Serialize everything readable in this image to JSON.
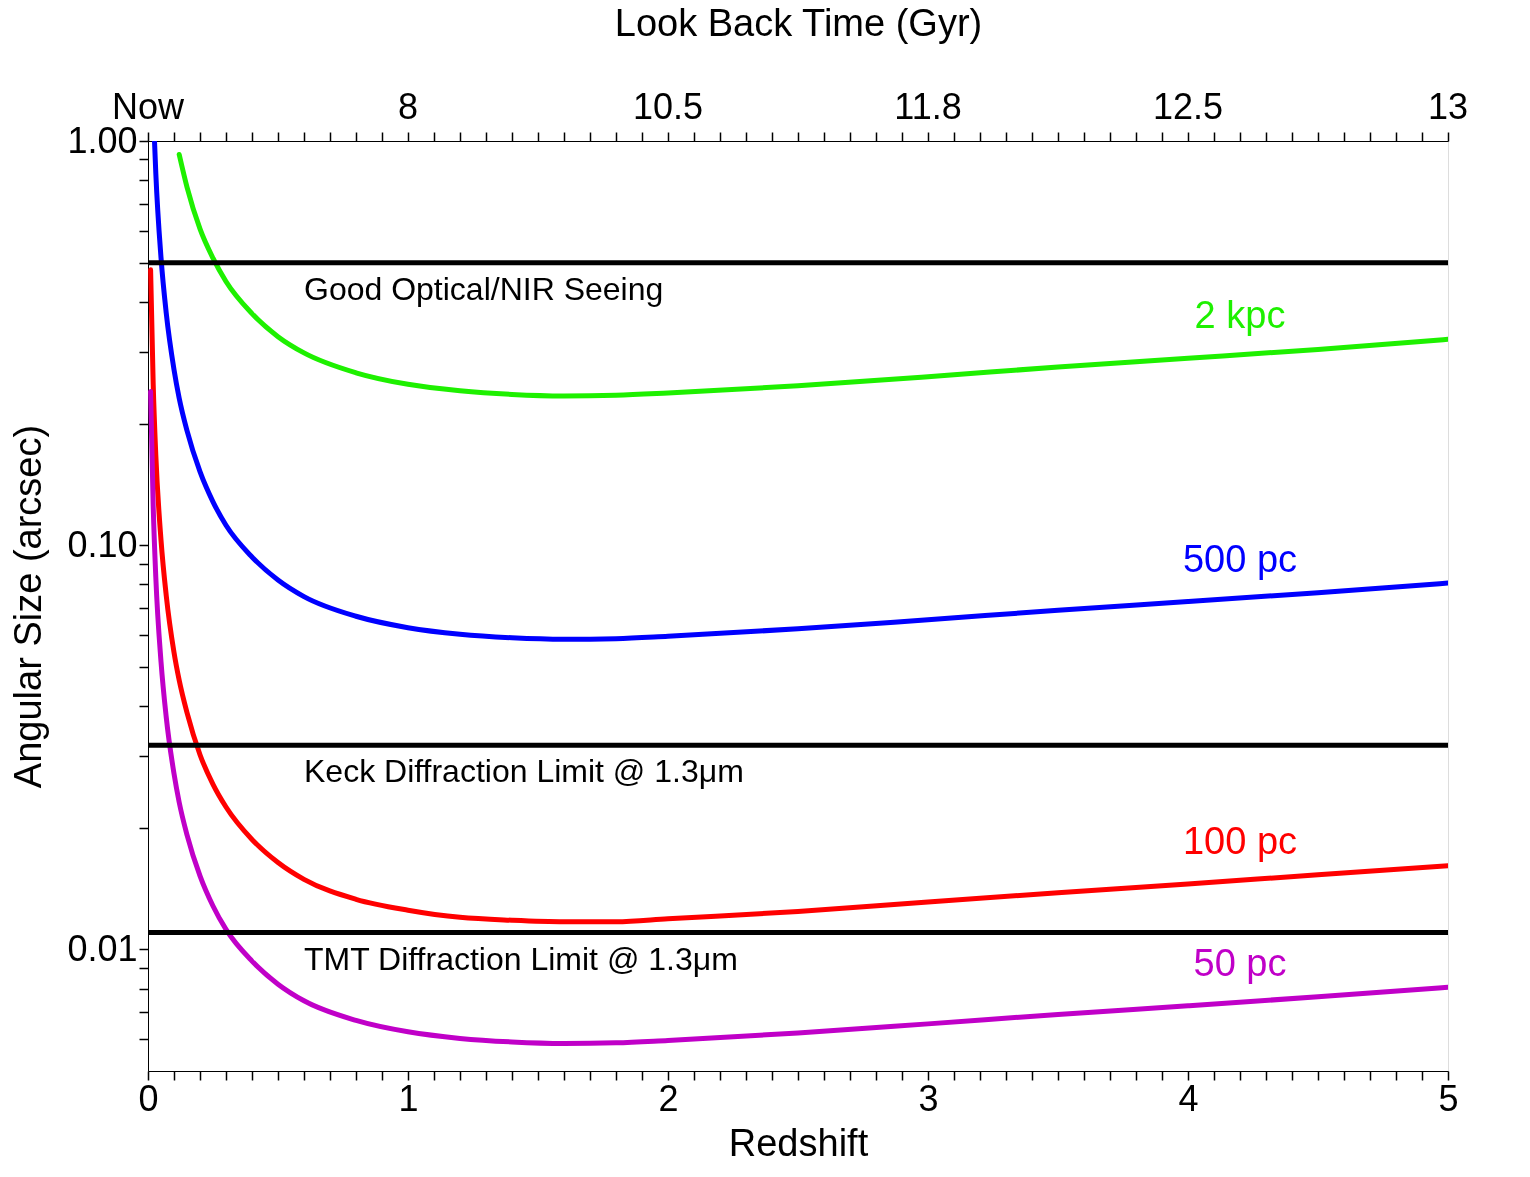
{
  "chart_data": {
    "type": "line",
    "xlabel": "Redshift",
    "ylabel": "Angular Size (arcsec)",
    "x2label": "Look Back Time (Gyr)",
    "log": "y",
    "xlim": [
      0,
      5
    ],
    "ylim": [
      0.005,
      1
    ],
    "xticks": [
      0,
      {
        "value": 0.1,
        "label": null
      },
      {
        "value": 0.2,
        "label": null
      },
      {
        "value": 0.3,
        "label": null
      },
      {
        "value": 0.4,
        "label": null
      },
      {
        "value": 0.5,
        "label": null
      },
      {
        "value": 0.6,
        "label": null
      },
      {
        "value": 0.7,
        "label": null
      },
      {
        "value": 0.8,
        "label": null
      },
      {
        "value": 0.9,
        "label": null
      },
      1,
      {
        "value": 1.1,
        "label": null
      },
      {
        "value": 1.2,
        "label": null
      },
      {
        "value": 1.3,
        "label": null
      },
      {
        "value": 1.4,
        "label": null
      },
      {
        "value": 1.5,
        "label": null
      },
      {
        "value": 1.6,
        "label": null
      },
      {
        "value": 1.7,
        "label": null
      },
      {
        "value": 1.8,
        "label": null
      },
      {
        "value": 1.9,
        "label": null
      },
      2,
      {
        "value": 2.1,
        "label": null
      },
      {
        "value": 2.2,
        "label": null
      },
      {
        "value": 2.3,
        "label": null
      },
      {
        "value": 2.4,
        "label": null
      },
      {
        "value": 2.5,
        "label": null
      },
      {
        "value": 2.6,
        "label": null
      },
      {
        "value": 2.7,
        "label": null
      },
      {
        "value": 2.8,
        "label": null
      },
      {
        "value": 2.9,
        "label": null
      },
      3,
      {
        "value": 3.1,
        "label": null
      },
      {
        "value": 3.2,
        "label": null
      },
      {
        "value": 3.3,
        "label": null
      },
      {
        "value": 3.4,
        "label": null
      },
      {
        "value": 3.5,
        "label": null
      },
      {
        "value": 3.6,
        "label": null
      },
      {
        "value": 3.7,
        "label": null
      },
      {
        "value": 3.8,
        "label": null
      },
      {
        "value": 3.9,
        "label": null
      },
      4,
      {
        "value": 4.1,
        "label": null
      },
      {
        "value": 4.2,
        "label": null
      },
      {
        "value": 4.3,
        "label": null
      },
      {
        "value": 4.4,
        "label": null
      },
      {
        "value": 4.5,
        "label": null
      },
      {
        "value": 4.6,
        "label": null
      },
      {
        "value": 4.7,
        "label": null
      },
      {
        "value": 4.8,
        "label": null
      },
      {
        "value": 4.9,
        "label": null
      },
      5
    ],
    "annotations": [
      "Now",
      "8",
      "10.5",
      "11.8",
      "12.5",
      "13"
    ],
    "yticks": [
      {
        "value": 0.006,
        "label": null
      },
      {
        "value": 0.007,
        "label": null
      },
      {
        "value": 0.008,
        "label": null
      },
      {
        "value": 0.009,
        "label": null
      },
      {
        "value": 0.01,
        "label": "0.01"
      },
      {
        "value": 0.02,
        "label": null
      },
      {
        "value": 0.03,
        "label": null
      },
      {
        "value": 0.04,
        "label": null
      },
      {
        "value": 0.05,
        "label": null
      },
      {
        "value": 0.06,
        "label": null
      },
      {
        "value": 0.07,
        "label": null
      },
      {
        "value": 0.08,
        "label": null
      },
      {
        "value": 0.09,
        "label": null
      },
      {
        "value": 0.1,
        "label": "0.10"
      },
      {
        "value": 0.2,
        "label": null
      },
      {
        "value": 0.3,
        "label": null
      },
      {
        "value": 0.4,
        "label": null
      },
      {
        "value": 0.5,
        "label": null
      },
      {
        "value": 0.6,
        "label": null
      },
      {
        "value": 0.7,
        "label": null
      },
      {
        "value": 0.8,
        "label": null
      },
      {
        "value": 0.9,
        "label": null
      },
      {
        "value": 1,
        "label": "1.00"
      }
    ],
    "marker": "none",
    "line_style": "solid",
    "legend": false,
    "series": [
      {
        "name": "2 kpc",
        "color": "#1ef000",
        "x": [
          0.12,
          0.15,
          0.2,
          0.25,
          0.3,
          0.4,
          0.5,
          0.6,
          0.8,
          1.0,
          1.2,
          1.4,
          1.6,
          1.8,
          2.0,
          2.5,
          3.0,
          3.5,
          4.0,
          4.5,
          5.0
        ],
        "values": [
          0.926,
          0.769,
          0.606,
          0.513,
          0.449,
          0.374,
          0.328,
          0.299,
          0.267,
          0.25,
          0.241,
          0.236,
          0.234,
          0.235,
          0.238,
          0.248,
          0.261,
          0.276,
          0.29,
          0.305,
          0.323
        ]
      },
      {
        "name": "500 pc",
        "color": "#0000ff",
        "x": [
          0.025,
          0.03,
          0.05,
          0.07,
          0.1,
          0.12,
          0.15,
          0.2,
          0.25,
          0.3,
          0.4,
          0.5,
          0.6,
          0.8,
          1.0,
          1.2,
          1.4,
          1.6,
          1.8,
          2.0,
          2.5,
          3.0,
          3.5,
          4.0,
          4.5,
          5.0
        ],
        "values": [
          1.0,
          0.833,
          0.515,
          0.376,
          0.272,
          0.231,
          0.192,
          0.152,
          0.128,
          0.112,
          0.0935,
          0.082,
          0.0746,
          0.0667,
          0.0625,
          0.0602,
          0.059,
          0.0585,
          0.0587,
          0.0595,
          0.0621,
          0.0654,
          0.069,
          0.0725,
          0.0763,
          0.0806
        ]
      },
      {
        "name": "100 pc",
        "color": "#ff0000",
        "x": [
          0.01,
          0.02,
          0.03,
          0.05,
          0.07,
          0.1,
          0.12,
          0.15,
          0.2,
          0.25,
          0.3,
          0.4,
          0.5,
          0.6,
          0.8,
          1.0,
          1.2,
          1.4,
          1.6,
          1.8,
          2.0,
          2.5,
          3.0,
          3.5,
          4.0,
          4.5,
          5.0
        ],
        "values": [
          0.48,
          0.25,
          0.167,
          0.103,
          0.0752,
          0.0543,
          0.0463,
          0.0385,
          0.0303,
          0.0256,
          0.0225,
          0.0187,
          0.0164,
          0.0149,
          0.0133,
          0.0125,
          0.012,
          0.0118,
          0.0117,
          0.0117,
          0.0119,
          0.0124,
          0.0131,
          0.0138,
          0.0145,
          0.0153,
          0.0161
        ]
      },
      {
        "name": "50 pc",
        "color": "#c000c8",
        "x": [
          0.01,
          0.02,
          0.03,
          0.05,
          0.07,
          0.1,
          0.12,
          0.15,
          0.2,
          0.25,
          0.3,
          0.4,
          0.5,
          0.6,
          0.8,
          1.0,
          1.2,
          1.4,
          1.6,
          1.8,
          2.0,
          2.5,
          3.0,
          3.5,
          4.0,
          4.5,
          5.0
        ],
        "values": [
          0.24,
          0.125,
          0.0833,
          0.0515,
          0.0376,
          0.0272,
          0.0231,
          0.0192,
          0.0152,
          0.0128,
          0.0112,
          0.00935,
          0.0082,
          0.00746,
          0.00667,
          0.00625,
          0.00602,
          0.0059,
          0.00585,
          0.00587,
          0.00595,
          0.00621,
          0.00654,
          0.0069,
          0.00725,
          0.00763,
          0.00806
        ]
      }
    ],
    "ref_lines": [
      {
        "axis": "y",
        "value": 0.5,
        "label": "Good Optical/NIR Seeing",
        "color": "#000000"
      },
      {
        "axis": "y",
        "value": 0.032,
        "label": "Keck Diffraction Limit @ 1.3μm",
        "color": "#000000"
      },
      {
        "axis": "y",
        "value": 0.011,
        "label": "TMT Diffraction Limit @ 1.3μm",
        "color": "#000000"
      }
    ]
  }
}
